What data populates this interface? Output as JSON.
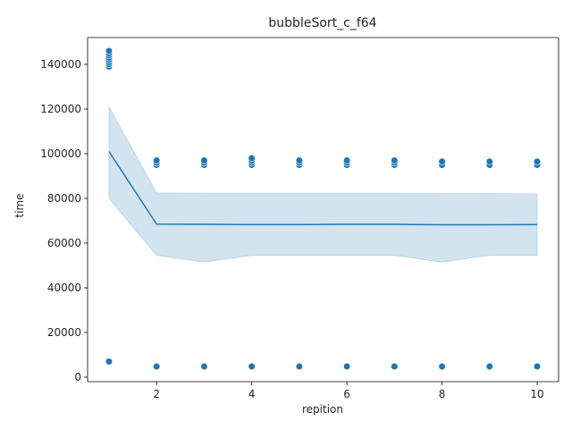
{
  "chart_data": {
    "type": "scatter",
    "title": "bubbleSort_c_f64",
    "xlabel": "repition",
    "ylabel": "time",
    "xlim": [
      0.55,
      10.45
    ],
    "ylim": [
      -2000,
      152000
    ],
    "x_ticks": [
      2,
      4,
      6,
      8,
      10
    ],
    "y_ticks": [
      0,
      20000,
      40000,
      60000,
      80000,
      100000,
      120000,
      140000
    ],
    "x_tick_labels": [
      "2",
      "4",
      "6",
      "8",
      "10"
    ],
    "y_tick_labels": [
      "0",
      "20000",
      "40000",
      "60000",
      "80000",
      "100000",
      "120000",
      "140000"
    ],
    "grid": false,
    "colors": {
      "points": "#1f77b4",
      "line": "#1f77b4",
      "band": "#1f77b4"
    },
    "scatter_points": [
      {
        "x": 1,
        "y": 6800
      },
      {
        "x": 1,
        "y": 7000
      },
      {
        "x": 1,
        "y": 139000
      },
      {
        "x": 1,
        "y": 140000
      },
      {
        "x": 1,
        "y": 141000
      },
      {
        "x": 1,
        "y": 142000
      },
      {
        "x": 1,
        "y": 143000
      },
      {
        "x": 1,
        "y": 144000
      },
      {
        "x": 1,
        "y": 145000
      },
      {
        "x": 1,
        "y": 146000
      },
      {
        "x": 2,
        "y": 4800
      },
      {
        "x": 2,
        "y": 95000
      },
      {
        "x": 2,
        "y": 96000
      },
      {
        "x": 2,
        "y": 97000
      },
      {
        "x": 3,
        "y": 4800
      },
      {
        "x": 3,
        "y": 95000
      },
      {
        "x": 3,
        "y": 96000
      },
      {
        "x": 3,
        "y": 97000
      },
      {
        "x": 4,
        "y": 4800
      },
      {
        "x": 4,
        "y": 95000
      },
      {
        "x": 4,
        "y": 96000
      },
      {
        "x": 4,
        "y": 97000
      },
      {
        "x": 4,
        "y": 98000
      },
      {
        "x": 5,
        "y": 4800
      },
      {
        "x": 5,
        "y": 95000
      },
      {
        "x": 5,
        "y": 96000
      },
      {
        "x": 5,
        "y": 97000
      },
      {
        "x": 6,
        "y": 4800
      },
      {
        "x": 6,
        "y": 95000
      },
      {
        "x": 6,
        "y": 96000
      },
      {
        "x": 6,
        "y": 97000
      },
      {
        "x": 7,
        "y": 4800
      },
      {
        "x": 7,
        "y": 95000
      },
      {
        "x": 7,
        "y": 96000
      },
      {
        "x": 7,
        "y": 97000
      },
      {
        "x": 8,
        "y": 4800
      },
      {
        "x": 8,
        "y": 95000
      },
      {
        "x": 8,
        "y": 96500
      },
      {
        "x": 9,
        "y": 4800
      },
      {
        "x": 9,
        "y": 95000
      },
      {
        "x": 9,
        "y": 96500
      },
      {
        "x": 10,
        "y": 4800
      },
      {
        "x": 10,
        "y": 95000
      },
      {
        "x": 10,
        "y": 96500
      }
    ],
    "mean_line": [
      {
        "x": 1,
        "y": 101000
      },
      {
        "x": 2,
        "y": 68500
      },
      {
        "x": 3,
        "y": 68400
      },
      {
        "x": 4,
        "y": 68300
      },
      {
        "x": 5,
        "y": 68300
      },
      {
        "x": 6,
        "y": 68400
      },
      {
        "x": 7,
        "y": 68400
      },
      {
        "x": 8,
        "y": 68200
      },
      {
        "x": 9,
        "y": 68200
      },
      {
        "x": 10,
        "y": 68300
      }
    ],
    "ci_band": [
      {
        "x": 1,
        "lower": 80000,
        "upper": 121000
      },
      {
        "x": 2,
        "lower": 54500,
        "upper": 82500
      },
      {
        "x": 3,
        "lower": 51500,
        "upper": 82300
      },
      {
        "x": 4,
        "lower": 54500,
        "upper": 82300
      },
      {
        "x": 5,
        "lower": 54500,
        "upper": 82300
      },
      {
        "x": 6,
        "lower": 54500,
        "upper": 82300
      },
      {
        "x": 7,
        "lower": 54500,
        "upper": 82300
      },
      {
        "x": 8,
        "lower": 51500,
        "upper": 82200
      },
      {
        "x": 9,
        "lower": 54500,
        "upper": 82200
      },
      {
        "x": 10,
        "lower": 54500,
        "upper": 82000
      }
    ]
  }
}
